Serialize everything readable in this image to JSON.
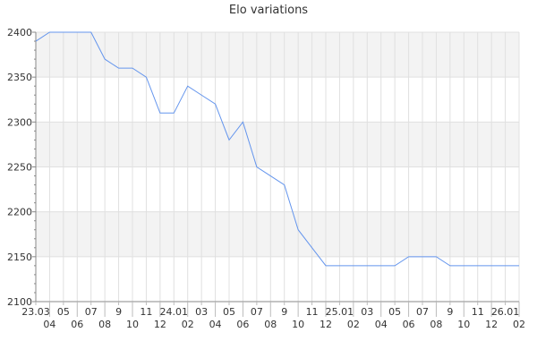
{
  "chart_data": {
    "type": "line",
    "title": "Elo variations",
    "xlabel": "",
    "ylabel": "",
    "categories": [
      "23.03",
      "04",
      "05",
      "06",
      "07",
      "08",
      "9",
      "10",
      "11",
      "12",
      "24.01",
      "02",
      "03",
      "04",
      "05",
      "06",
      "07",
      "08",
      "9",
      "10",
      "11",
      "12",
      "25.01",
      "02",
      "03",
      "04",
      "05",
      "06",
      "07",
      "08",
      "9",
      "10",
      "11",
      "12",
      "26.01",
      "02"
    ],
    "values": [
      2390,
      2400,
      2400,
      2400,
      2400,
      2370,
      2360,
      2360,
      2350,
      2310,
      2310,
      2340,
      2330,
      2320,
      2280,
      2300,
      2250,
      2240,
      2230,
      2180,
      2160,
      2140,
      2140,
      2140,
      2140,
      2140,
      2140,
      2150,
      2150,
      2150,
      2140,
      2140,
      2140,
      2140,
      2140,
      2140
    ],
    "ylim": [
      2100,
      2400
    ],
    "yticks": [
      2100,
      2150,
      2200,
      2250,
      2300,
      2350,
      2400
    ],
    "grid": true,
    "legend": "none",
    "line_color": "#6495ed",
    "band_color": "#f3f3f3"
  }
}
